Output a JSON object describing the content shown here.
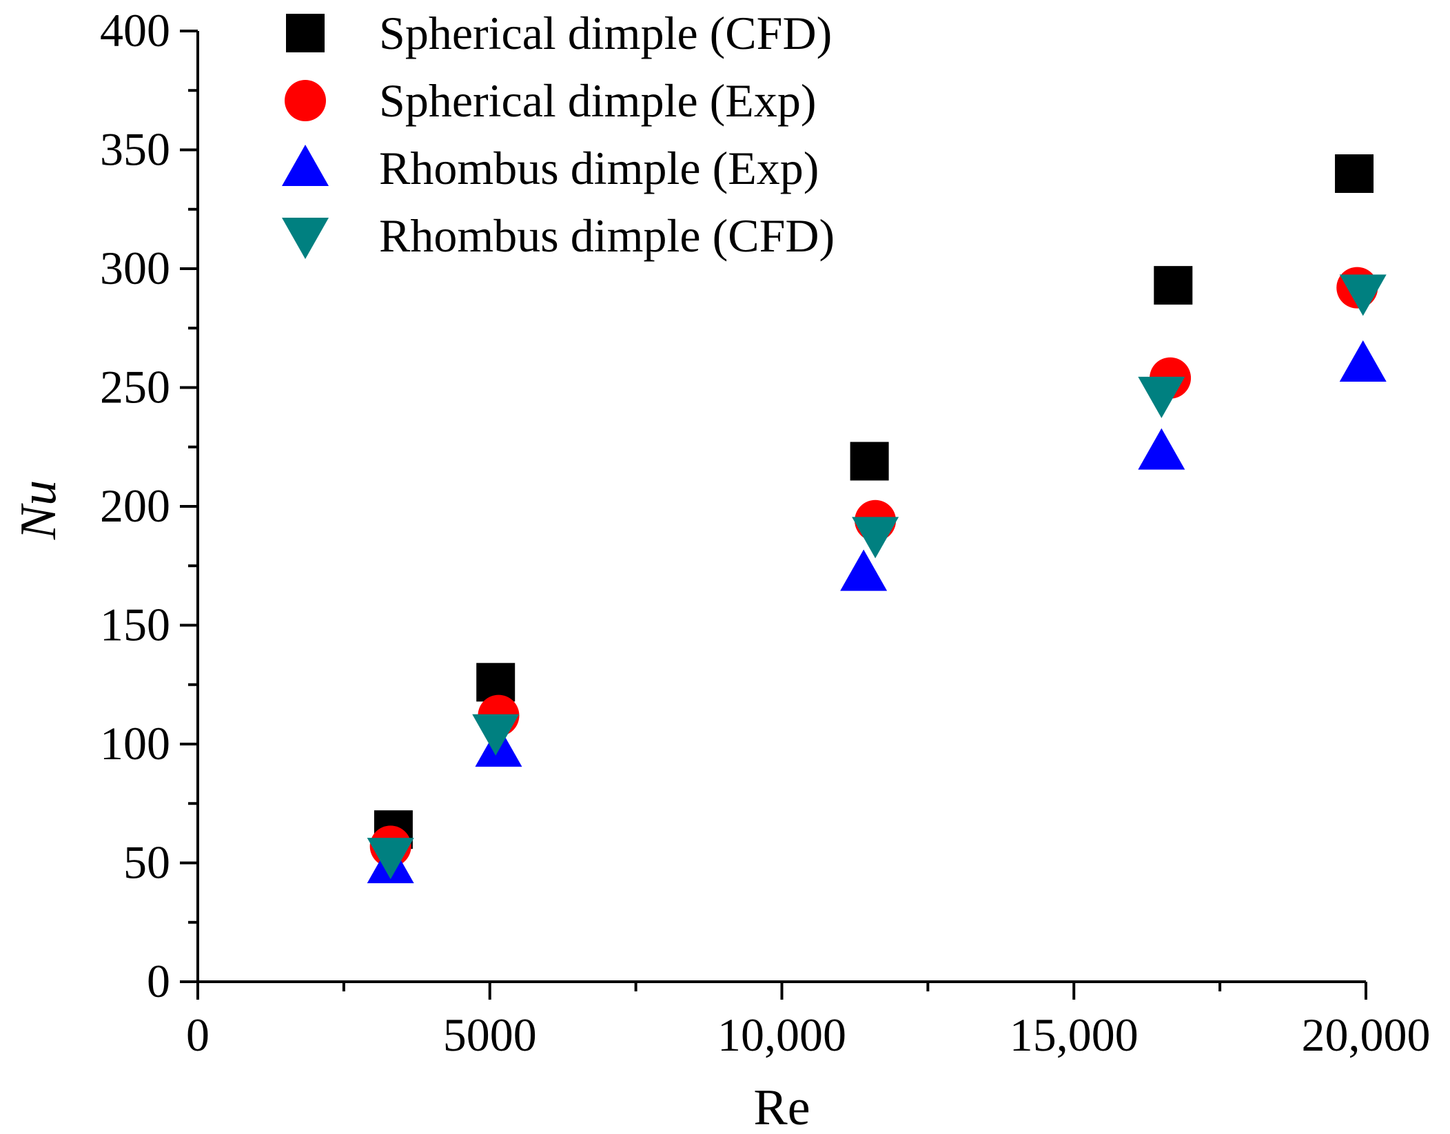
{
  "chart_data": {
    "type": "scatter",
    "title": "",
    "xlabel": "Re",
    "ylabel": "Nu",
    "xlim": [
      0,
      20000
    ],
    "ylim": [
      0,
      400
    ],
    "xticks": [
      0,
      5000,
      10000,
      15000,
      20000
    ],
    "xtick_labels": [
      "0",
      "5000",
      "10,000",
      "15,000",
      "20,000"
    ],
    "yticks": [
      0,
      50,
      100,
      150,
      200,
      250,
      300,
      350,
      400
    ],
    "ytick_labels": [
      "0",
      "50",
      "100",
      "150",
      "200",
      "250",
      "300",
      "350",
      "400"
    ],
    "grid": false,
    "legend_position": "top-left",
    "series": [
      {
        "name": "Spherical dimple (CFD)",
        "marker": "square",
        "color": "#000000",
        "x": [
          3350,
          5100,
          11500,
          16700,
          19800
        ],
        "y": [
          64,
          126,
          219,
          293,
          340
        ]
      },
      {
        "name": "Spherical dimple (Exp)",
        "marker": "circle",
        "color": "#ff0000",
        "x": [
          3300,
          5150,
          11600,
          16650,
          19850
        ],
        "y": [
          57,
          112,
          194,
          254,
          292
        ]
      },
      {
        "name": "Rhombus dimple (Exp)",
        "marker": "triangle-up",
        "color": "#0000ff",
        "x": [
          3300,
          5150,
          11400,
          16500,
          19950
        ],
        "y": [
          49,
          98,
          172,
          223,
          260
        ]
      },
      {
        "name": "Rhombus dimple (CFD)",
        "marker": "triangle-down",
        "color": "#008080",
        "x": [
          3300,
          5100,
          11600,
          16500,
          19950
        ],
        "y": [
          53,
          105,
          188,
          247,
          290
        ]
      }
    ]
  }
}
